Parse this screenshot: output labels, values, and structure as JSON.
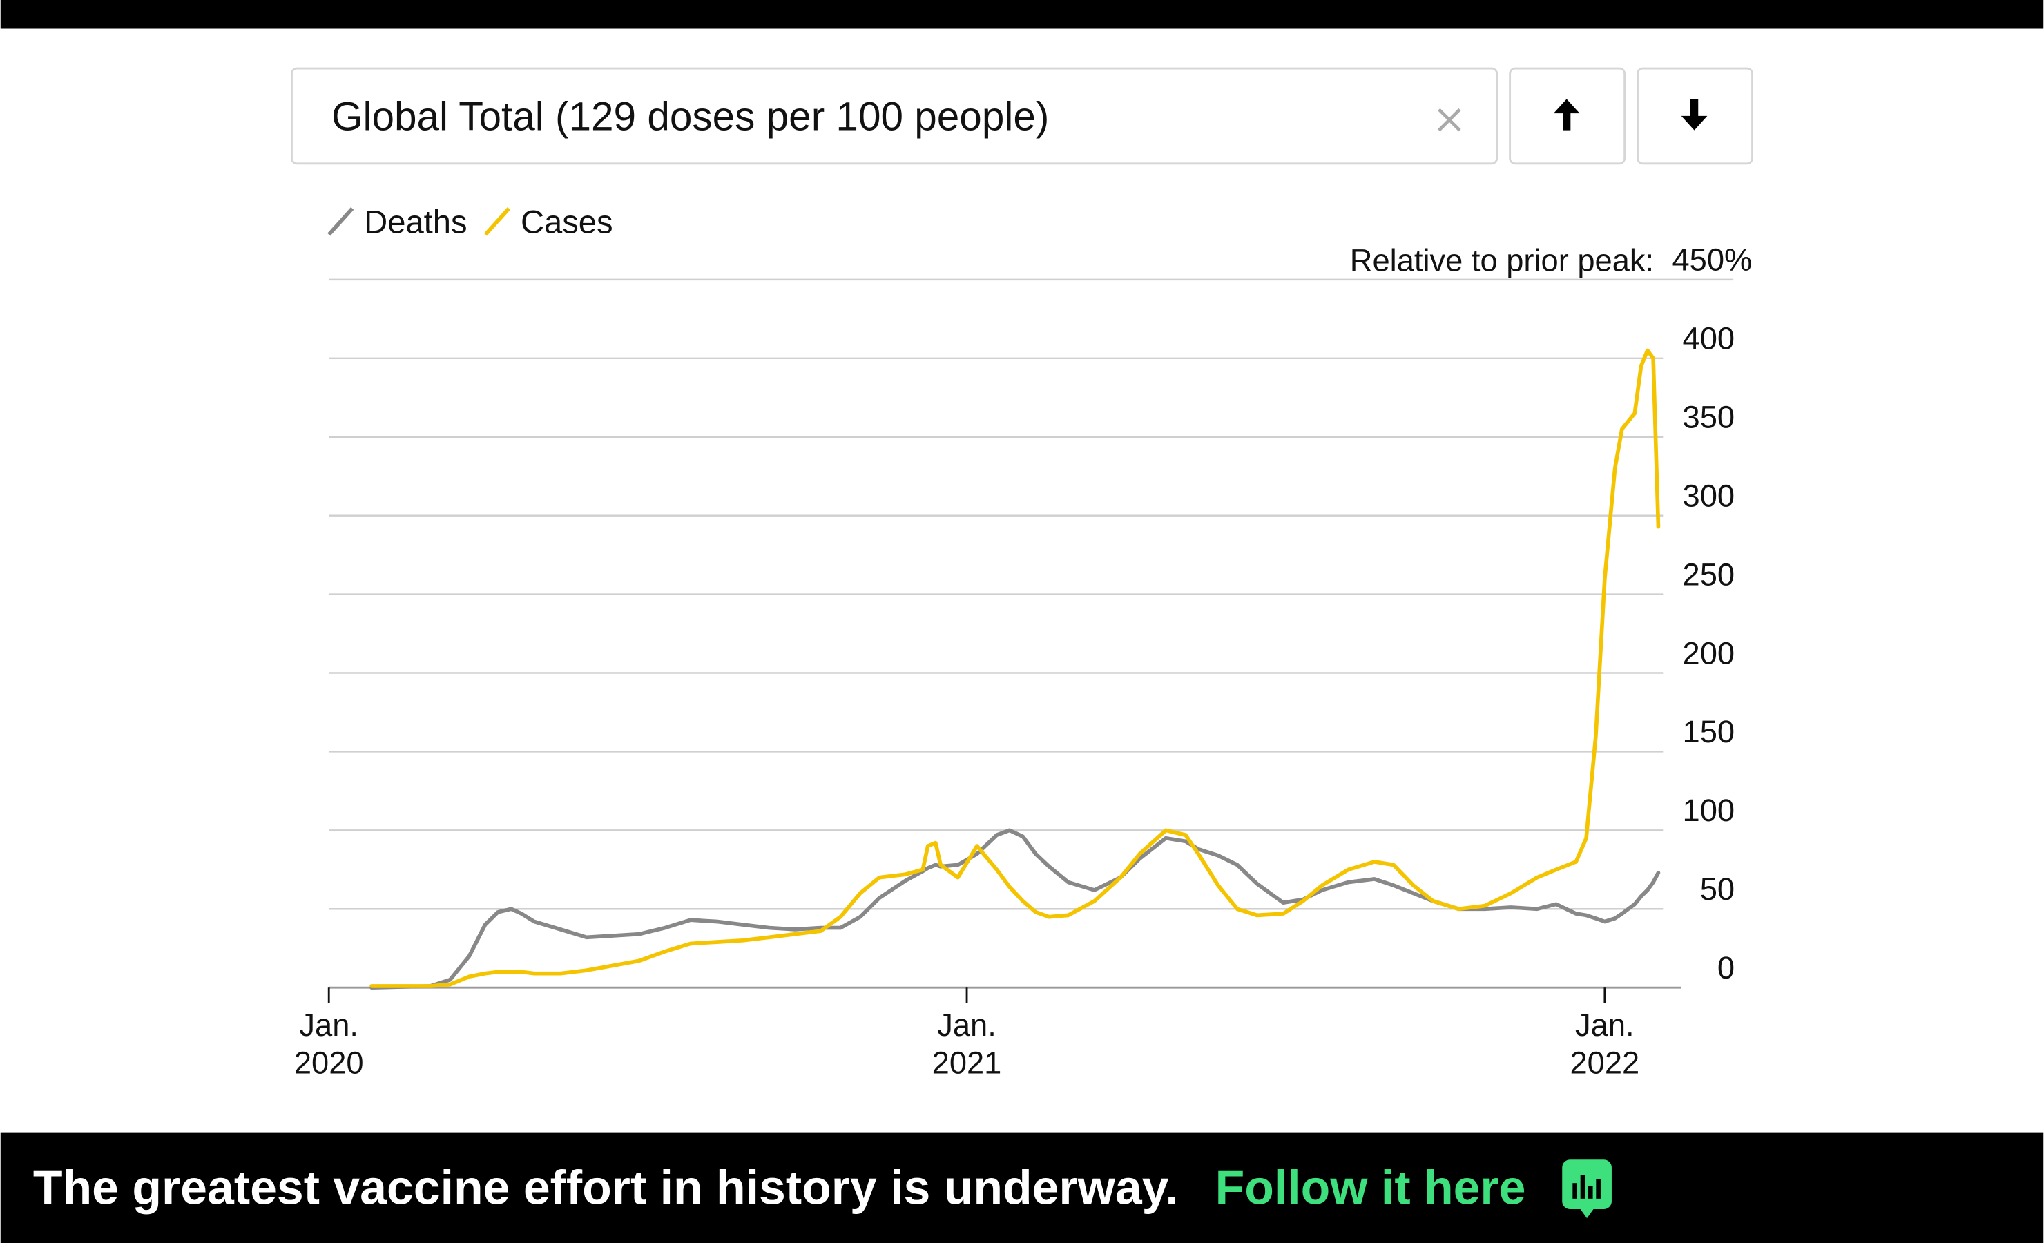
{
  "search": {
    "text": "Global Total (129 doses per 100 people)"
  },
  "chart_data": {
    "type": "line",
    "annotation": "Relative to prior peak:",
    "x": [
      2020.067,
      2020.159,
      2020.19,
      2020.22,
      2020.245,
      2020.265,
      2020.286,
      2020.302,
      2020.322,
      2020.363,
      2020.404,
      2020.445,
      2020.486,
      2020.527,
      2020.567,
      2020.608,
      2020.649,
      2020.69,
      2020.731,
      2020.771,
      2020.802,
      2020.833,
      2020.863,
      2020.904,
      2020.931,
      2020.939,
      2020.951,
      2020.959,
      2020.986,
      2021.016,
      2021.047,
      2021.067,
      2021.088,
      2021.108,
      2021.129,
      2021.159,
      2021.2,
      2021.241,
      2021.271,
      2021.312,
      2021.343,
      2021.363,
      2021.394,
      2021.424,
      2021.455,
      2021.496,
      2021.527,
      2021.557,
      2021.598,
      2021.639,
      2021.669,
      2021.7,
      2021.731,
      2021.771,
      2021.812,
      2021.853,
      2021.894,
      2021.924,
      2021.955,
      2021.971,
      2021.986,
      2022.0,
      2022.016,
      2022.027,
      2022.037,
      2022.047,
      2022.057,
      2022.067,
      2022.076,
      2022.084
    ],
    "series": [
      {
        "name": "Deaths",
        "color": "#888888",
        "values": [
          0,
          1,
          5,
          20,
          40,
          48,
          50,
          47,
          42,
          37,
          32,
          33,
          34,
          38,
          43,
          42,
          40,
          38,
          37,
          38,
          38,
          45,
          57,
          68,
          74,
          76,
          78,
          77,
          78,
          85,
          97,
          100,
          96,
          85,
          77,
          67,
          62,
          70,
          82,
          95,
          93,
          88,
          84,
          78,
          66,
          54,
          56,
          62,
          67,
          69,
          65,
          60,
          55,
          50,
          50,
          51,
          50,
          53,
          47,
          46,
          44,
          42,
          44,
          47,
          50,
          53,
          58,
          62,
          67,
          73
        ]
      },
      {
        "name": "Cases",
        "color": "#f5c400",
        "values": [
          1,
          1,
          2,
          7,
          9,
          10,
          10,
          10,
          9,
          9,
          11,
          14,
          17,
          23,
          28,
          29,
          30,
          32,
          34,
          36,
          45,
          60,
          70,
          72,
          75,
          90,
          92,
          78,
          70,
          90,
          75,
          64,
          55,
          48,
          45,
          46,
          55,
          70,
          85,
          100,
          97,
          85,
          65,
          50,
          46,
          47,
          55,
          65,
          75,
          80,
          78,
          65,
          55,
          50,
          52,
          60,
          70,
          75,
          80,
          95,
          160,
          260,
          330,
          355,
          360,
          365,
          395,
          405,
          400,
          293
        ]
      }
    ],
    "xlim": [
      2020,
      2022.12
    ],
    "xticks": [
      {
        "value": 2020,
        "label": "Jan.\n2020"
      },
      {
        "value": 2021,
        "label": "Jan.\n2021"
      },
      {
        "value": 2022,
        "label": "Jan.\n2022"
      }
    ],
    "ylim": [
      0,
      450
    ],
    "yticks": [
      0,
      50,
      100,
      150,
      200,
      250,
      300,
      350,
      400,
      {
        "value": 450,
        "label": "450%"
      }
    ],
    "grid": true
  },
  "banner": {
    "text": "The greatest vaccine effort in history is underway.",
    "link": "Follow it here"
  }
}
